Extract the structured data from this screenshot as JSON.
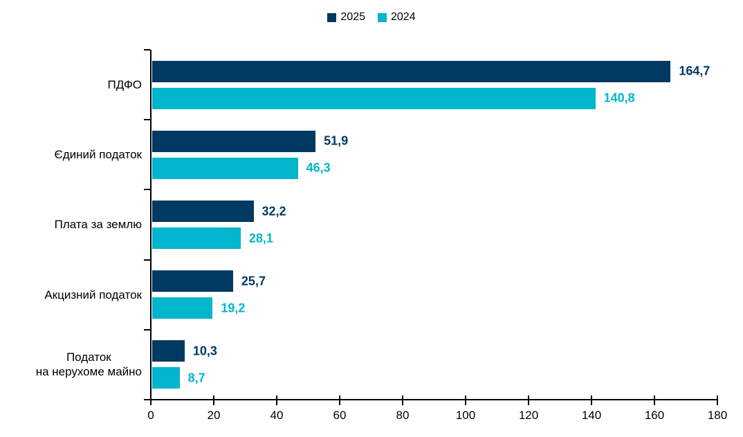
{
  "legend": {
    "items": [
      {
        "label": "2025",
        "color": "#003a63"
      },
      {
        "label": "2024",
        "color": "#00b5cc"
      }
    ]
  },
  "chart_data": {
    "type": "bar",
    "orientation": "horizontal",
    "title": "",
    "xlabel": "",
    "ylabel": "",
    "grid": false,
    "legend_position": "top-center",
    "categories": [
      "ПДФО",
      "Єдиний податок",
      "Плата за землю",
      "Акцизний податок",
      "Податок\nна нерухоме майно"
    ],
    "series": [
      {
        "name": "2025",
        "color": "#003a63",
        "values": [
          164.7,
          51.9,
          32.2,
          25.7,
          10.3
        ],
        "labels": [
          "164,7",
          "51,9",
          "32,2",
          "25,7",
          "10,3"
        ]
      },
      {
        "name": "2024",
        "color": "#00b5cc",
        "values": [
          140.8,
          46.3,
          28.1,
          19.2,
          8.7
        ],
        "labels": [
          "140,8",
          "46,3",
          "28,1",
          "19,2",
          "8,7"
        ]
      }
    ],
    "xlim": [
      0,
      180
    ],
    "x_ticks": [
      0,
      20,
      40,
      60,
      80,
      100,
      120,
      140,
      160,
      180
    ]
  }
}
